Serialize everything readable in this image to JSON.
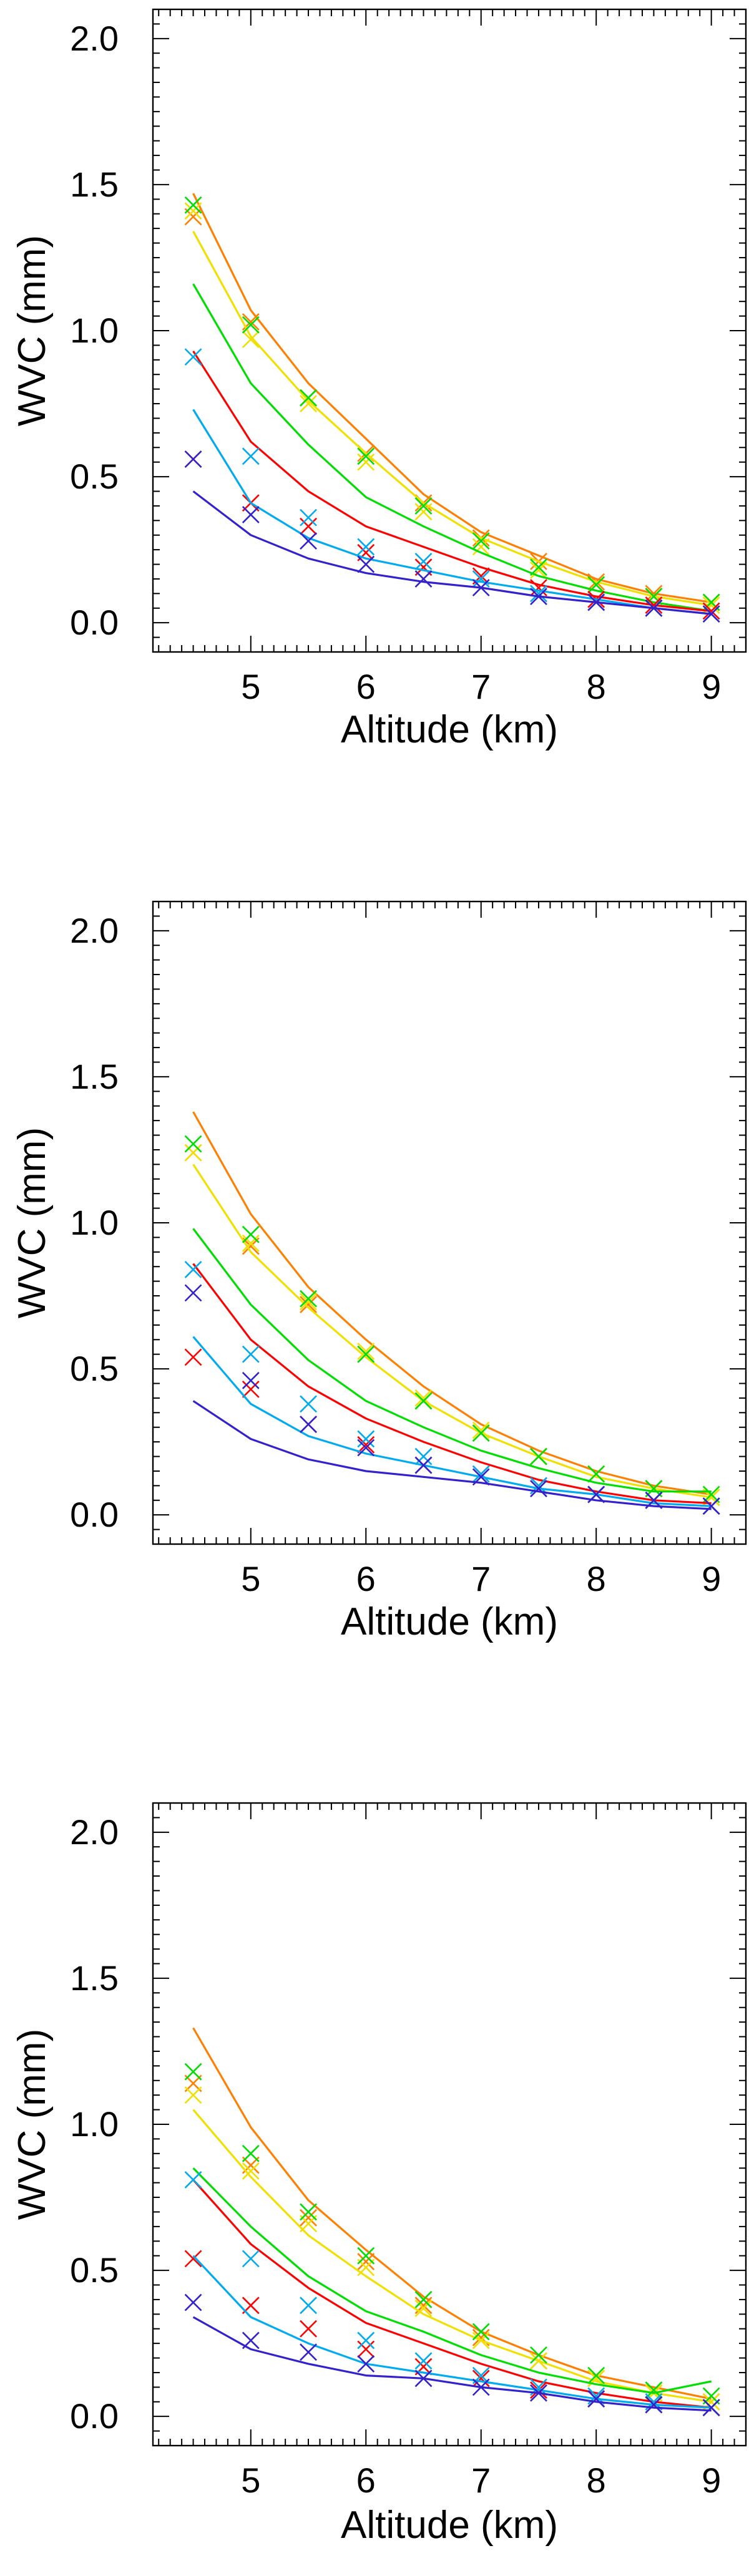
{
  "chart_data": [
    {
      "type": "line",
      "xlabel": "Altitude (km)",
      "ylabel": "WVC (mm)",
      "xlim": [
        4.15,
        9.3
      ],
      "ylim": [
        -0.1,
        2.1
      ],
      "xticks": [
        5,
        6,
        7,
        8,
        9
      ],
      "xtick_labels": [
        "5",
        "6",
        "7",
        "8",
        "9"
      ],
      "yticks": [
        0.0,
        0.5,
        1.0,
        1.5,
        2.0
      ],
      "ytick_labels": [
        "0.0",
        "0.5",
        "1.0",
        "1.5",
        "2.0"
      ],
      "x": [
        4.5,
        5.0,
        5.5,
        6.0,
        6.5,
        7.0,
        7.5,
        8.0,
        8.5,
        9.0
      ],
      "series": [
        {
          "name": "orange",
          "color": "#ff7f00",
          "values": [
            1.47,
            1.07,
            0.82,
            0.63,
            0.44,
            0.31,
            0.23,
            0.15,
            0.1,
            0.07
          ],
          "markers": [
            1.39,
            1.03,
            0.77,
            0.58,
            0.41,
            0.29,
            0.21,
            0.14,
            0.1,
            0.07
          ]
        },
        {
          "name": "yellow",
          "color": "#f0e000",
          "values": [
            1.34,
            0.98,
            0.76,
            0.58,
            0.41,
            0.29,
            0.21,
            0.14,
            0.09,
            0.06
          ],
          "markers": [
            1.41,
            0.97,
            0.75,
            0.55,
            0.38,
            0.26,
            0.18,
            0.13,
            0.09,
            0.06
          ]
        },
        {
          "name": "green",
          "color": "#00dd00",
          "values": [
            1.16,
            0.82,
            0.61,
            0.43,
            0.33,
            0.24,
            0.16,
            0.11,
            0.07,
            0.04
          ],
          "markers": [
            1.43,
            1.02,
            0.77,
            0.57,
            0.4,
            0.28,
            0.19,
            0.13,
            0.09,
            0.07
          ]
        },
        {
          "name": "red",
          "color": "#ff0000",
          "values": [
            0.93,
            0.62,
            0.45,
            0.33,
            0.26,
            0.19,
            0.13,
            0.09,
            0.06,
            0.04
          ],
          "markers": [
            0.56,
            0.41,
            0.33,
            0.24,
            0.19,
            0.16,
            0.12,
            0.08,
            0.06,
            0.04
          ]
        },
        {
          "name": "cyan",
          "color": "#00aaee",
          "values": [
            0.73,
            0.41,
            0.29,
            0.22,
            0.18,
            0.14,
            0.11,
            0.08,
            0.05,
            0.03
          ],
          "markers": [
            0.91,
            0.57,
            0.36,
            0.26,
            0.21,
            0.15,
            0.1,
            0.07,
            0.05,
            0.03
          ]
        },
        {
          "name": "blue",
          "color": "#3322cc",
          "values": [
            0.45,
            0.3,
            0.22,
            0.17,
            0.14,
            0.12,
            0.09,
            0.07,
            0.05,
            0.03
          ],
          "markers": [
            0.56,
            0.37,
            0.28,
            0.2,
            0.15,
            0.12,
            0.09,
            0.07,
            0.05,
            0.03
          ]
        }
      ]
    },
    {
      "type": "line",
      "xlabel": "Altitude (km)",
      "ylabel": "WVC (mm)",
      "xlim": [
        4.15,
        9.3
      ],
      "ylim": [
        -0.1,
        2.1
      ],
      "xticks": [
        5,
        6,
        7,
        8,
        9
      ],
      "xtick_labels": [
        "5",
        "6",
        "7",
        "8",
        "9"
      ],
      "yticks": [
        0.0,
        0.5,
        1.0,
        1.5,
        2.0
      ],
      "ytick_labels": [
        "0.0",
        "0.5",
        "1.0",
        "1.5",
        "2.0"
      ],
      "x": [
        4.5,
        5.0,
        5.5,
        6.0,
        6.5,
        7.0,
        7.5,
        8.0,
        8.5,
        9.0
      ],
      "series": [
        {
          "name": "orange",
          "color": "#ff7f00",
          "values": [
            1.38,
            1.03,
            0.78,
            0.6,
            0.44,
            0.31,
            0.22,
            0.15,
            0.1,
            0.07
          ],
          "markers": [
            1.24,
            0.92,
            0.72,
            0.55,
            0.39,
            0.28,
            0.2,
            0.14,
            0.09,
            0.06
          ]
        },
        {
          "name": "yellow",
          "color": "#f0e000",
          "values": [
            1.2,
            0.9,
            0.71,
            0.54,
            0.39,
            0.28,
            0.2,
            0.13,
            0.09,
            0.06
          ],
          "markers": [
            1.24,
            0.93,
            0.73,
            0.56,
            0.4,
            0.29,
            0.2,
            0.14,
            0.09,
            0.06
          ]
        },
        {
          "name": "green",
          "color": "#00dd00",
          "values": [
            0.98,
            0.72,
            0.53,
            0.39,
            0.3,
            0.22,
            0.16,
            0.11,
            0.08,
            0.08
          ],
          "markers": [
            1.27,
            0.96,
            0.74,
            0.55,
            0.39,
            0.28,
            0.2,
            0.14,
            0.09,
            0.07
          ]
        },
        {
          "name": "red",
          "color": "#ff0000",
          "values": [
            0.86,
            0.6,
            0.44,
            0.33,
            0.25,
            0.18,
            0.12,
            0.08,
            0.05,
            0.04
          ],
          "markers": [
            0.54,
            0.43,
            0.31,
            0.24,
            0.17,
            0.14,
            0.1,
            0.07,
            0.05,
            0.03
          ]
        },
        {
          "name": "cyan",
          "color": "#00aaee",
          "values": [
            0.61,
            0.38,
            0.27,
            0.21,
            0.17,
            0.13,
            0.09,
            0.07,
            0.04,
            0.03
          ],
          "markers": [
            0.84,
            0.55,
            0.38,
            0.26,
            0.2,
            0.14,
            0.1,
            0.07,
            0.05,
            0.03
          ]
        },
        {
          "name": "blue",
          "color": "#3322cc",
          "values": [
            0.39,
            0.26,
            0.19,
            0.15,
            0.13,
            0.11,
            0.08,
            0.05,
            0.03,
            0.02
          ],
          "markers": [
            0.76,
            0.46,
            0.31,
            0.23,
            0.17,
            0.13,
            0.09,
            0.07,
            0.05,
            0.03
          ]
        }
      ]
    },
    {
      "type": "line",
      "xlabel": "Altitude (km)",
      "ylabel": "WVC (mm)",
      "xlim": [
        4.15,
        9.3
      ],
      "ylim": [
        -0.1,
        2.1
      ],
      "xticks": [
        5,
        6,
        7,
        8,
        9
      ],
      "xtick_labels": [
        "5",
        "6",
        "7",
        "8",
        "9"
      ],
      "yticks": [
        0.0,
        0.5,
        1.0,
        1.5,
        2.0
      ],
      "ytick_labels": [
        "0.0",
        "0.5",
        "1.0",
        "1.5",
        "2.0"
      ],
      "x": [
        4.5,
        5.0,
        5.5,
        6.0,
        6.5,
        7.0,
        7.5,
        8.0,
        8.5,
        9.0
      ],
      "series": [
        {
          "name": "orange",
          "color": "#ff7f00",
          "values": [
            1.33,
            0.99,
            0.74,
            0.57,
            0.41,
            0.29,
            0.21,
            0.14,
            0.1,
            0.06
          ],
          "markers": [
            1.14,
            0.86,
            0.68,
            0.53,
            0.38,
            0.27,
            0.19,
            0.13,
            0.08,
            0.05
          ]
        },
        {
          "name": "yellow",
          "color": "#f0e000",
          "values": [
            1.05,
            0.82,
            0.62,
            0.48,
            0.35,
            0.26,
            0.19,
            0.12,
            0.08,
            0.05
          ],
          "markers": [
            1.1,
            0.84,
            0.66,
            0.51,
            0.37,
            0.26,
            0.19,
            0.13,
            0.08,
            0.05
          ]
        },
        {
          "name": "green",
          "color": "#00dd00",
          "values": [
            0.85,
            0.65,
            0.48,
            0.36,
            0.29,
            0.21,
            0.15,
            0.11,
            0.08,
            0.12
          ],
          "markers": [
            1.18,
            0.9,
            0.7,
            0.55,
            0.4,
            0.29,
            0.21,
            0.14,
            0.09,
            0.07
          ]
        },
        {
          "name": "red",
          "color": "#ff0000",
          "values": [
            0.81,
            0.59,
            0.44,
            0.32,
            0.25,
            0.18,
            0.12,
            0.08,
            0.05,
            0.03
          ],
          "markers": [
            0.54,
            0.38,
            0.3,
            0.23,
            0.17,
            0.13,
            0.09,
            0.06,
            0.04,
            0.03
          ]
        },
        {
          "name": "cyan",
          "color": "#00aaee",
          "values": [
            0.55,
            0.34,
            0.25,
            0.18,
            0.15,
            0.12,
            0.09,
            0.06,
            0.04,
            0.03
          ],
          "markers": [
            0.81,
            0.54,
            0.38,
            0.26,
            0.19,
            0.14,
            0.1,
            0.07,
            0.05,
            0.03
          ]
        },
        {
          "name": "blue",
          "color": "#3322cc",
          "values": [
            0.34,
            0.23,
            0.18,
            0.14,
            0.13,
            0.1,
            0.08,
            0.05,
            0.03,
            0.02
          ],
          "markers": [
            0.39,
            0.26,
            0.22,
            0.18,
            0.13,
            0.1,
            0.08,
            0.06,
            0.04,
            0.03
          ]
        }
      ]
    }
  ]
}
